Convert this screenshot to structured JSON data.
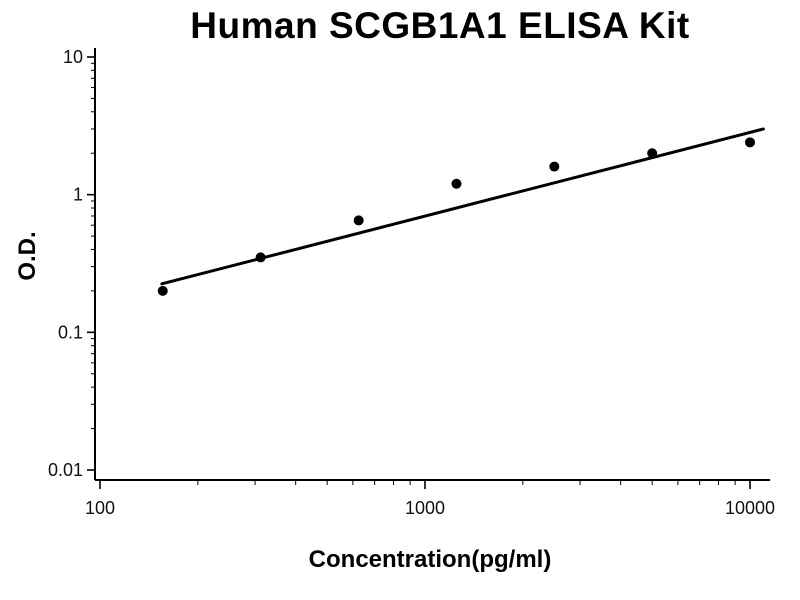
{
  "chart_data": {
    "type": "scatter",
    "title": "Human SCGB1A1 ELISA Kit",
    "xlabel": "Concentration(pg/ml)",
    "ylabel": "O.D.",
    "x_scale": "log",
    "y_scale": "log",
    "xlim": [
      100,
      10000
    ],
    "ylim": [
      0.01,
      10
    ],
    "x_ticks": [
      100,
      1000,
      10000
    ],
    "y_ticks": [
      0.01,
      0.1,
      1,
      10
    ],
    "grid": false,
    "legend": false,
    "points": {
      "x": [
        156,
        312,
        625,
        1250,
        2500,
        5000,
        10000
      ],
      "y": [
        0.2,
        0.35,
        0.65,
        1.2,
        1.6,
        2.0,
        2.4
      ]
    },
    "fit_line": {
      "x": [
        155,
        11000
      ],
      "y": [
        0.225,
        3.0
      ]
    },
    "point_color": "#000000",
    "line_color": "#000000",
    "axis_color": "#000000"
  }
}
